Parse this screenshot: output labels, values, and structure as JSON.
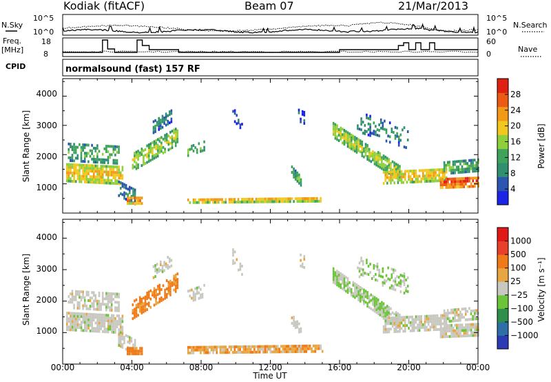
{
  "header": {
    "station": "Kodiak (fitACF)",
    "beam": "Beam 07",
    "date": "21/Mar/2013"
  },
  "strip_panels": {
    "nsky_label": "N.Sky",
    "nsky_ticks": [
      "10^5",
      "10^0"
    ],
    "nsearch_label": "N.Search",
    "nsearch_ticks": [
      "10^5",
      "10^0"
    ],
    "freq_label_1": "Freq.",
    "freq_label_2": "[MHz]",
    "freq_ticks": [
      "18",
      "8"
    ],
    "nave_label": "Nave",
    "nave_ticks": [
      "60",
      "0"
    ],
    "cpid_label": "CPID",
    "cpid_value": "normalsound (fast) 157 RF"
  },
  "colors": {
    "power_scale": [
      "#1a24e6",
      "#2a55b0",
      "#2f8f6e",
      "#3fa35b",
      "#8fcf3c",
      "#f2c81e",
      "#f29a18",
      "#ec5a14",
      "#e02010"
    ],
    "velocity_scale": [
      "#2a3bb5",
      "#2e6fa8",
      "#2f8f4a",
      "#6cc43a",
      "#c8c8c0",
      "#e8a640",
      "#f07a18",
      "#e8402a",
      "#e01818"
    ]
  },
  "chart_data": [
    {
      "type": "heatmap",
      "panel": "power",
      "ylabel": "Slant Range [km]",
      "yticks": [
        "1000",
        "2000",
        "3000",
        "4000"
      ],
      "ylim": [
        0,
        4600
      ],
      "xlim_hours": [
        0,
        24
      ],
      "colorbar_label": "Power [dB]",
      "colorbar_ticks": [
        "4",
        "8",
        "12",
        "16",
        "20",
        "24",
        "28"
      ],
      "colorbar_range": [
        0,
        32
      ]
    },
    {
      "type": "heatmap",
      "panel": "velocity",
      "ylabel": "Slant Range [km]",
      "yticks": [
        "1000",
        "2000",
        "3000",
        "4000"
      ],
      "ylim": [
        0,
        4600
      ],
      "xlim_hours": [
        0,
        24
      ],
      "colorbar_label": "Velocity [m s⁻¹]",
      "colorbar_ticks": [
        "1000",
        "500",
        "100",
        "25",
        "−25",
        "−100",
        "−500",
        "−1000"
      ]
    }
  ],
  "x_axis": {
    "ticks": [
      "00:00",
      "04:00",
      "08:00",
      "12:00",
      "16:00",
      "20:00",
      "00:00"
    ],
    "label": "Time UT"
  }
}
